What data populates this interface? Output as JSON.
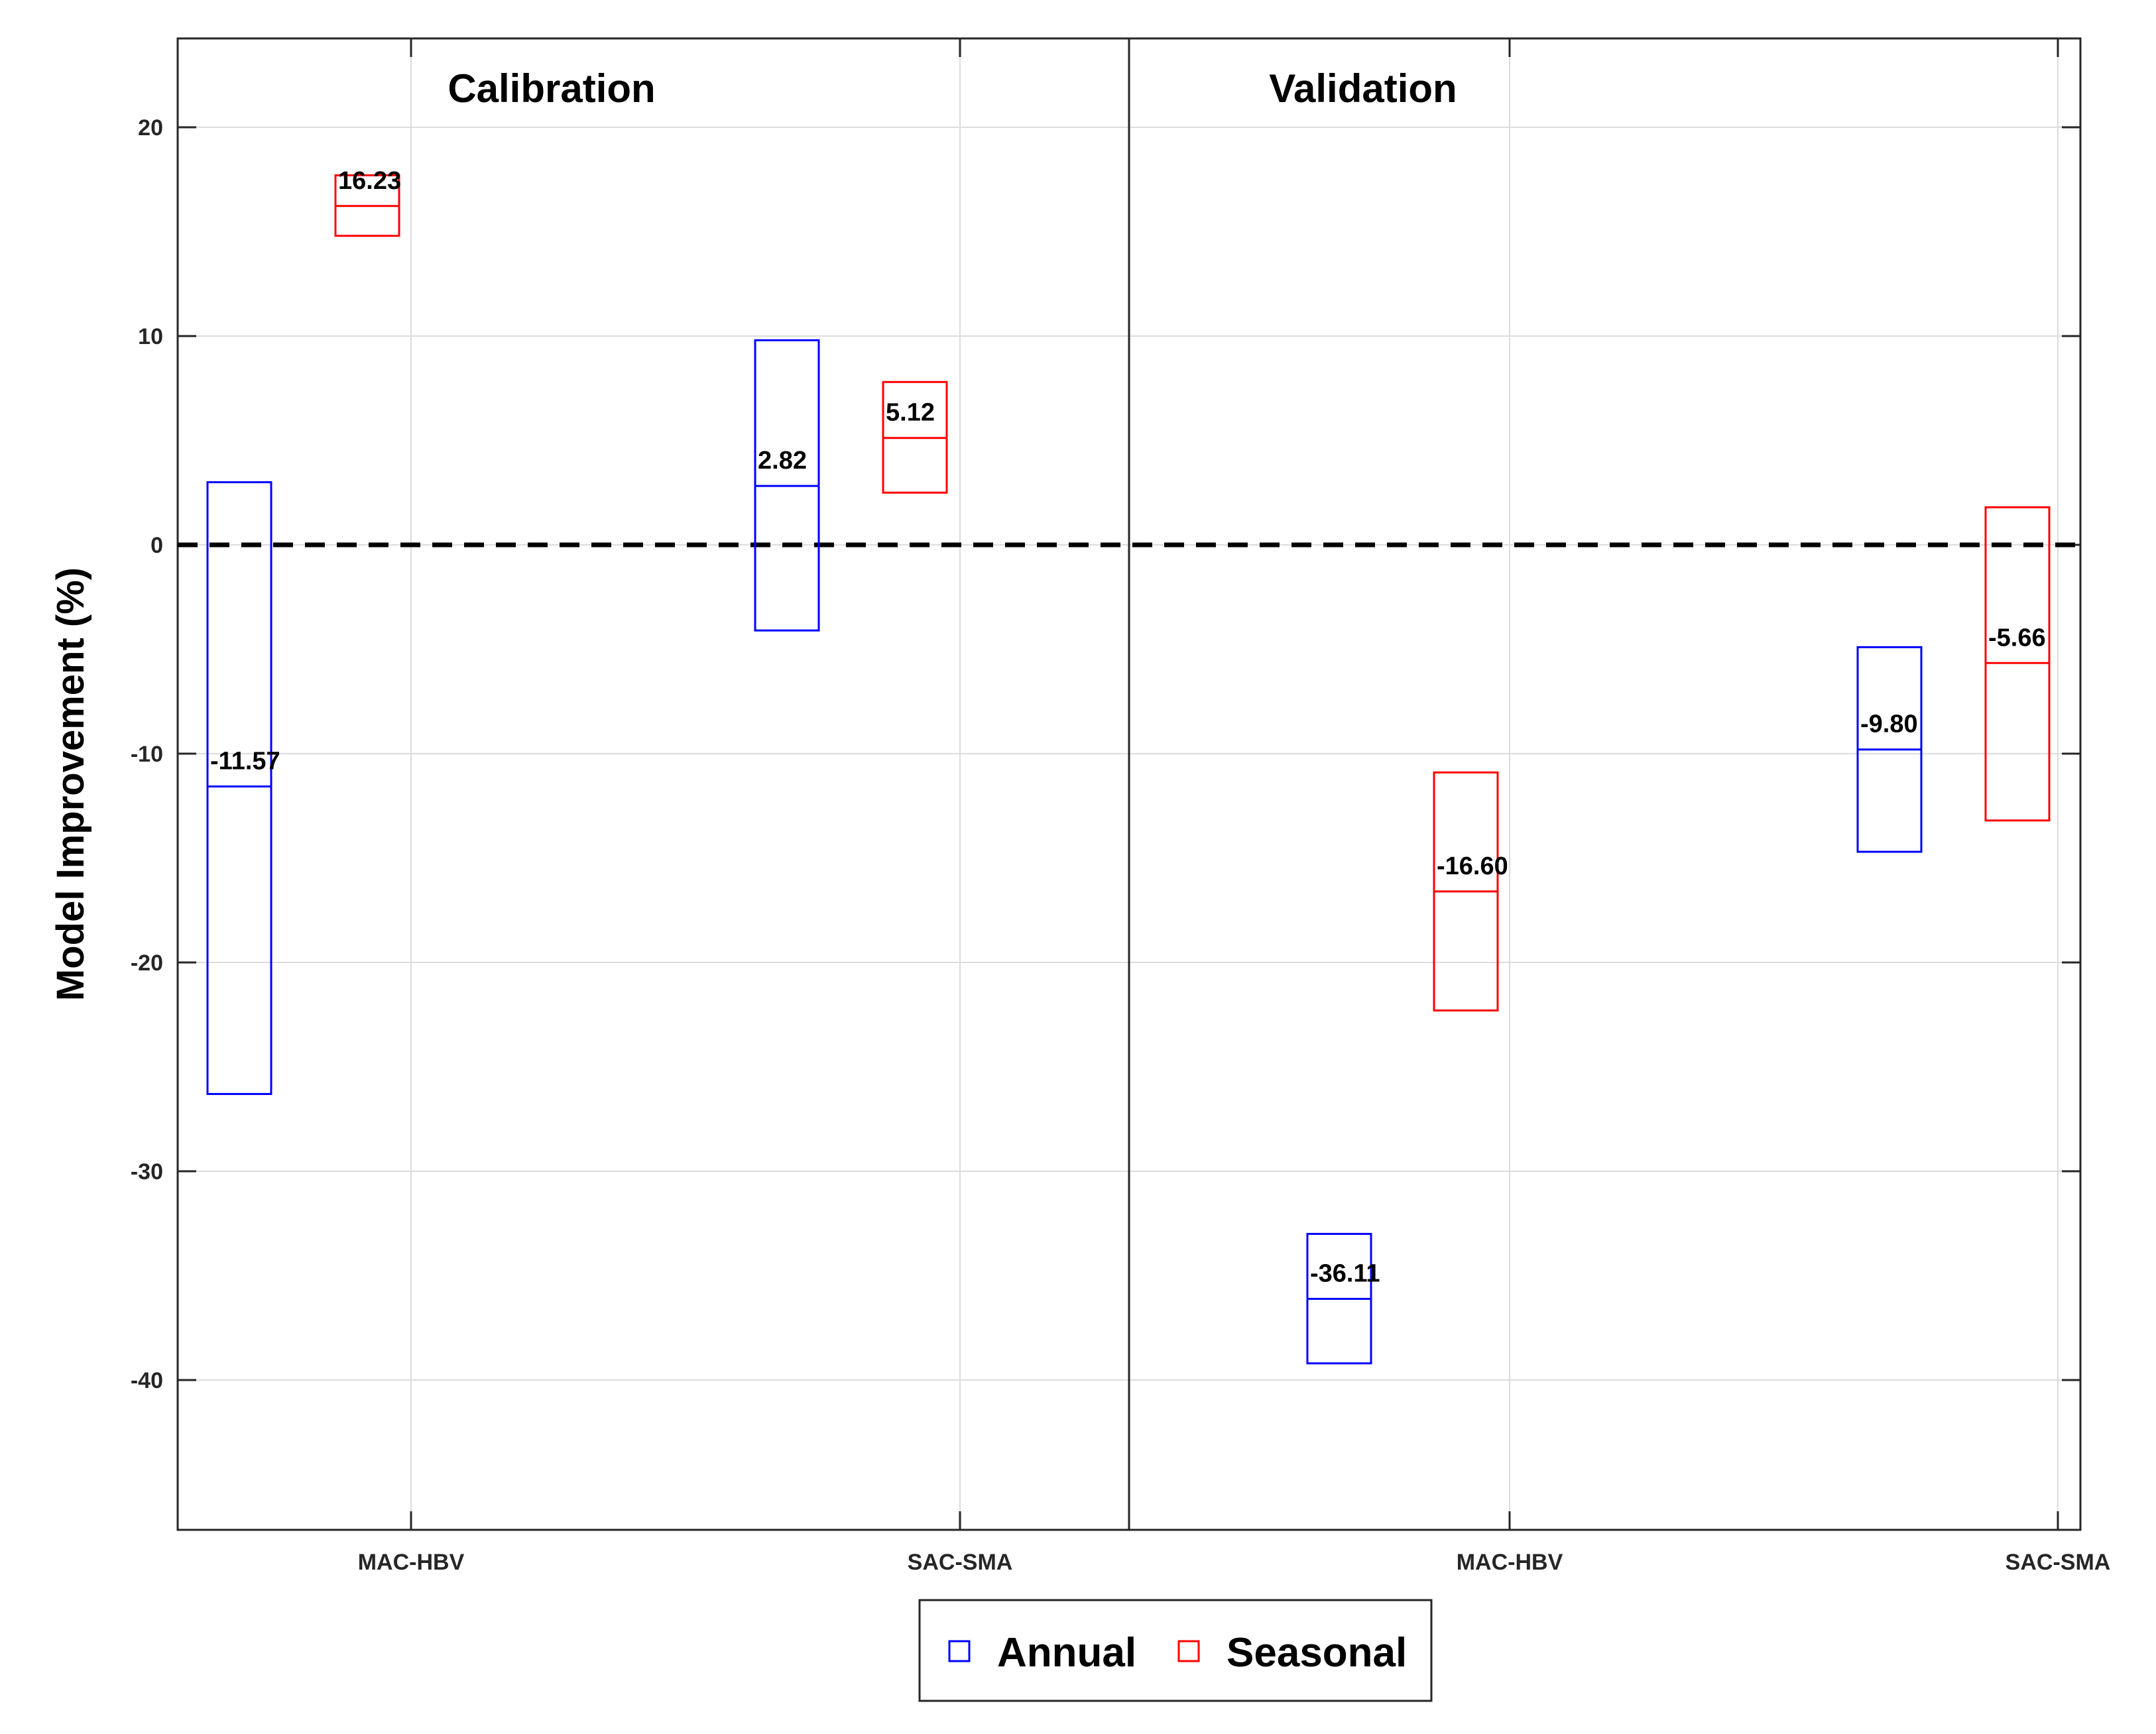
{
  "chart_data": {
    "type": "box",
    "ylabel": "Model Improvement (%)",
    "ylim": [
      -47.5,
      24.5
    ],
    "yticks": [
      20,
      10,
      0,
      -10,
      -20,
      -30,
      -40
    ],
    "grid": true,
    "reference_line": 0,
    "legend": {
      "position": "bottom-center",
      "entries": [
        "Annual",
        "Seasonal"
      ]
    },
    "colors": {
      "Annual": "#0000ff",
      "Seasonal": "#ff0000"
    },
    "panels": [
      {
        "title": "Calibration",
        "categories": [
          "MAC-HBV",
          "SAC-SMA"
        ],
        "series": [
          {
            "name": "Annual",
            "category": "MAC-HBV",
            "low": -26.3,
            "median": -11.57,
            "high": 3.0,
            "label": "-11.57"
          },
          {
            "name": "Seasonal",
            "category": "MAC-HBV",
            "low": 14.8,
            "median": 16.23,
            "high": 17.7,
            "label": "16.23"
          },
          {
            "name": "Annual",
            "category": "SAC-SMA",
            "low": -4.1,
            "median": 2.82,
            "high": 9.8,
            "label": "2.82"
          },
          {
            "name": "Seasonal",
            "category": "SAC-SMA",
            "low": 2.5,
            "median": 5.12,
            "high": 7.8,
            "label": "5.12"
          }
        ]
      },
      {
        "title": "Validation",
        "categories": [
          "MAC-HBV",
          "SAC-SMA"
        ],
        "series": [
          {
            "name": "Annual",
            "category": "MAC-HBV",
            "low": -39.2,
            "median": -36.11,
            "high": -33.0,
            "label": "-36.11"
          },
          {
            "name": "Seasonal",
            "category": "MAC-HBV",
            "low": -22.3,
            "median": -16.6,
            "high": -10.9,
            "label": "-16.60"
          },
          {
            "name": "Annual",
            "category": "SAC-SMA",
            "low": -14.7,
            "median": -9.8,
            "high": -4.9,
            "label": "-9.80"
          },
          {
            "name": "Seasonal",
            "category": "SAC-SMA",
            "low": -13.2,
            "median": -5.66,
            "high": 1.8,
            "label": "-5.66"
          }
        ]
      }
    ]
  }
}
